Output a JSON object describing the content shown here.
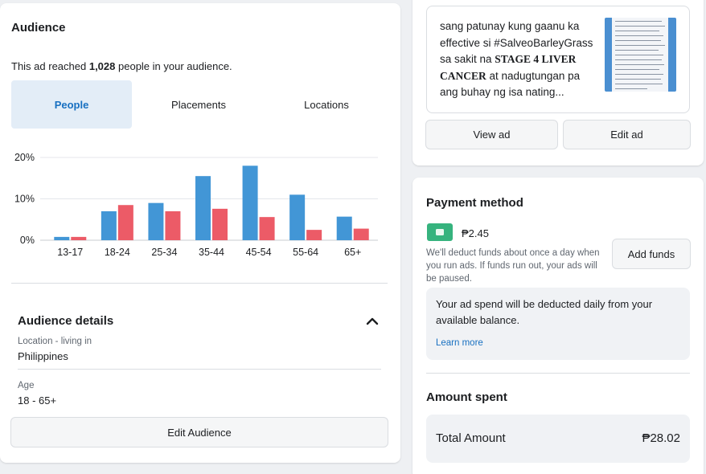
{
  "audience": {
    "title": "Audience",
    "reach_prefix": "This ad reached ",
    "reach_count": "1,028",
    "reach_suffix": " people in your audience.",
    "tabs": [
      {
        "label": "People",
        "active": true
      },
      {
        "label": "Placements",
        "active": false
      },
      {
        "label": "Locations",
        "active": false
      }
    ],
    "details_title": "Audience details",
    "location_label": "Location - living in",
    "location_value": "Philippines",
    "age_label": "Age",
    "age_value": "18 - 65+",
    "edit_button": "Edit Audience"
  },
  "chart_data": {
    "type": "bar",
    "categories": [
      "13-17",
      "18-24",
      "25-34",
      "35-44",
      "45-54",
      "55-64",
      "65+"
    ],
    "series": [
      {
        "values": [
          0.8,
          7.0,
          9.0,
          15.5,
          18.0,
          11.0,
          5.7
        ]
      },
      {
        "values": [
          0.8,
          8.5,
          7.0,
          7.6,
          5.6,
          2.5,
          2.8
        ]
      }
    ],
    "yticks": [
      "20%",
      "10%",
      "0%"
    ],
    "ylim": [
      0,
      20
    ],
    "grid": true,
    "colors": [
      "#4296d6",
      "#ec5b67"
    ]
  },
  "ad": {
    "text_line1": "sang patunay kung gaanu ka effective si #SalveoBarleyGrass sa sakit na ",
    "text_bold": "STAGE 4 LIVER CANCER",
    "text_line2": " at nadugtungan pa ang buhay ng isa nating...",
    "view_button": "View ad",
    "edit_button": "Edit ad"
  },
  "payment": {
    "title": "Payment method",
    "icon": "wallet-icon",
    "balance": "₱2.45",
    "note": "We'll deduct funds about once a day when you run ads. If funds run out, your ads will be paused.",
    "add_funds": "Add funds",
    "info": "Your ad spend will be deducted daily from your available balance.",
    "learn_more": "Learn more",
    "amount_title": "Amount spent",
    "total_label": "Total Amount",
    "total_value": "₱28.02"
  }
}
